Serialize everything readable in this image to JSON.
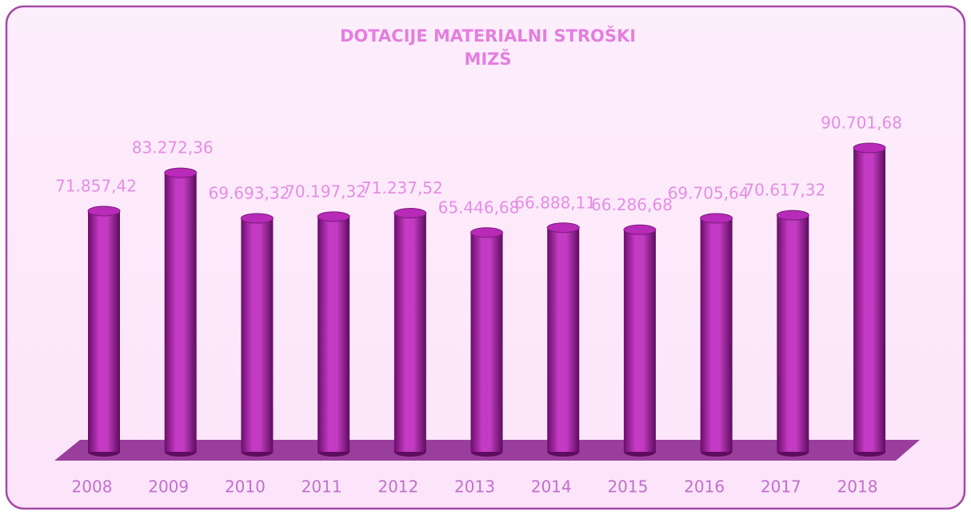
{
  "chart_data": {
    "type": "bar",
    "title": [
      "DOTACIJE MATERIALNI STROŠKI",
      "MIZŠ"
    ],
    "categories": [
      "2008",
      "2009",
      "2010",
      "2011",
      "2012",
      "2013",
      "2014",
      "2015",
      "2016",
      "2017",
      "2018"
    ],
    "values": [
      71857.42,
      83272.36,
      69693.32,
      70197.32,
      71237.52,
      65446.68,
      66888.11,
      66286.68,
      69705.64,
      70617.32,
      90701.68
    ],
    "value_labels": [
      "71.857,42",
      "83.272,36",
      "69.693,32",
      "70.197,32",
      "71.237,52",
      "65.446,68",
      "66.888,11",
      "66.286,68",
      "69.705,64",
      "70.617,32",
      "90.701,68"
    ],
    "color": "#b82ab8"
  }
}
